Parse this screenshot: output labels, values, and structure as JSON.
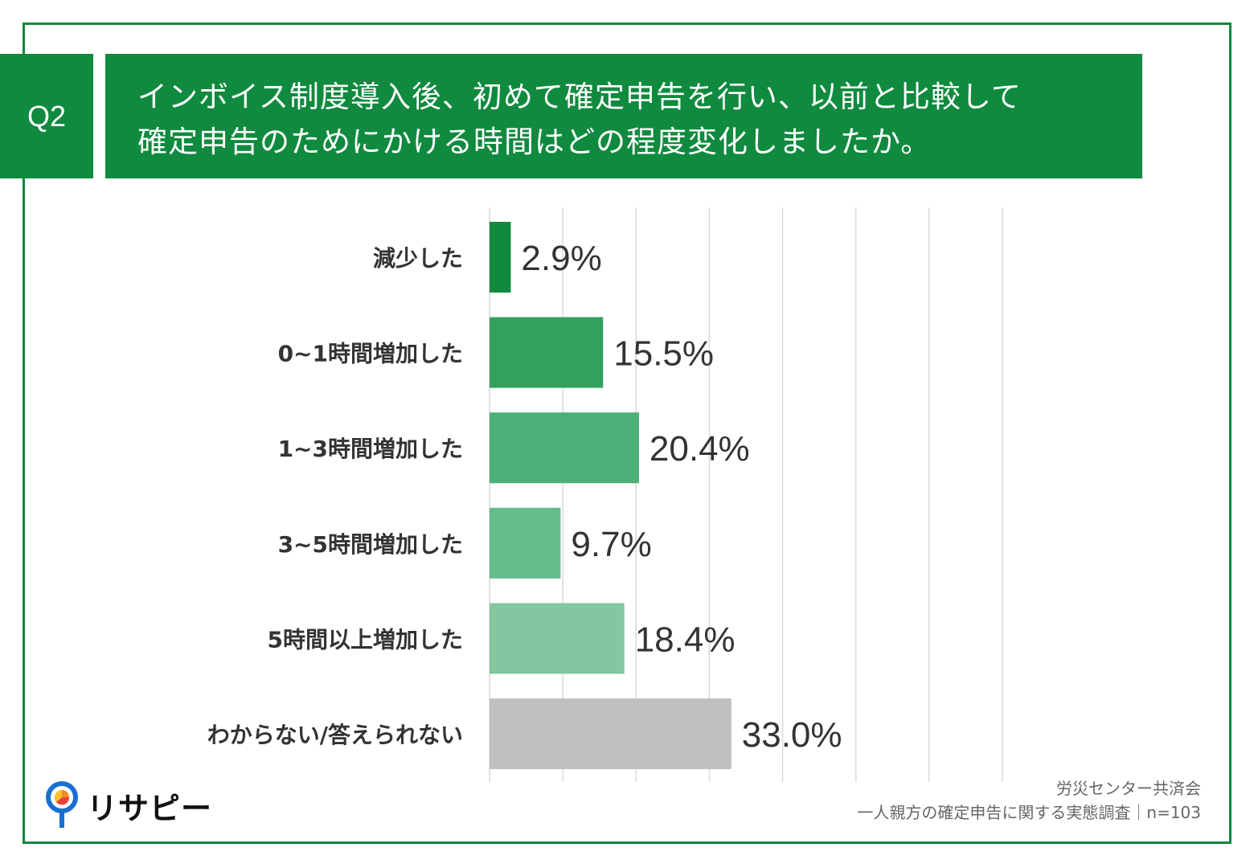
{
  "question": {
    "tag": "Q2",
    "line1": "インボイス制度導入後、初めて確定申告を行い、以前と比較して",
    "line2": "確定申告のためにかける時間はどの程度変化しましたか。"
  },
  "chart_data": {
    "type": "bar",
    "orientation": "horizontal",
    "xlim": [
      0,
      70
    ],
    "grid_step": 10,
    "categories": [
      "減少した",
      "0~1時間増加した",
      "1~3時間増加した",
      "3~5時間増加した",
      "5時間以上増加した",
      "わからない/答えられない"
    ],
    "values": [
      2.9,
      15.5,
      20.4,
      9.7,
      18.4,
      33.0
    ],
    "labels": [
      "2.9%",
      "15.5%",
      "20.4%",
      "9.7%",
      "18.4%",
      "33.0%"
    ],
    "colors": [
      "#0f8a3e",
      "#32a15d",
      "#4caf78",
      "#66bb8c",
      "#82c7a0",
      "#bfbfbf"
    ]
  },
  "brand": {
    "name": "リサピー",
    "accent": "#0f8a3e"
  },
  "source": {
    "line1": "労災センター共済会",
    "line2": "一人親方の確定申告に関する実態調査｜n=103"
  }
}
